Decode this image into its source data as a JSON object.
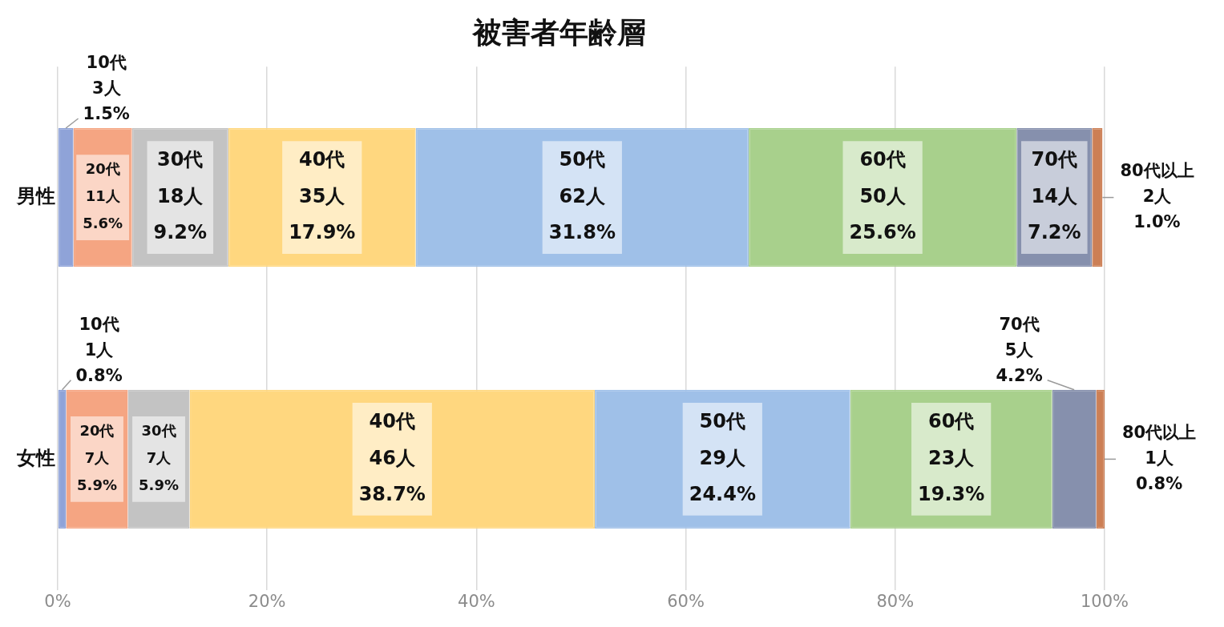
{
  "chart_data": {
    "type": "bar",
    "title": "被害者年齢層",
    "orientation": "horizontal",
    "stacked": true,
    "categories": [
      "男性",
      "女性"
    ],
    "xlim": [
      0,
      100
    ],
    "xticks": [
      {
        "value": 0,
        "label": "0%"
      },
      {
        "value": 20,
        "label": "20%"
      },
      {
        "value": 40,
        "label": "40%"
      },
      {
        "value": 60,
        "label": "60%"
      },
      {
        "value": 80,
        "label": "80%"
      },
      {
        "value": 100,
        "label": "100%"
      }
    ],
    "grid": "x",
    "series": [
      {
        "name": "10代",
        "color": "#8fa3d8",
        "values": [
          1.5,
          0.8
        ],
        "value_labels": [
          "3人\n1.5%",
          "1人\n0.8%"
        ]
      },
      {
        "name": "20代",
        "color": "#f5a582",
        "values": [
          5.6,
          5.9
        ],
        "value_labels": [
          "11人\n5.6%",
          "7人\n5.9%"
        ]
      },
      {
        "name": "30代",
        "color": "#c3c3c3",
        "values": [
          9.2,
          5.9
        ],
        "value_labels": [
          "18人\n9.2%",
          "7人\n5.9%"
        ]
      },
      {
        "name": "40代",
        "color": "#ffd77f",
        "values": [
          17.9,
          38.7
        ],
        "value_labels": [
          "35人\n17.9%",
          "46人\n38.7%"
        ]
      },
      {
        "name": "50代",
        "color": "#9fc0e8",
        "values": [
          31.8,
          24.4
        ],
        "value_labels": [
          "62人\n31.8%",
          "29人\n24.4%"
        ]
      },
      {
        "name": "60代",
        "color": "#a8d08c",
        "values": [
          25.6,
          19.3
        ],
        "value_labels": [
          "50人\n25.6%",
          "23人\n19.3%"
        ]
      },
      {
        "name": "70代",
        "color": "#8690ad",
        "values": [
          7.2,
          4.2
        ],
        "value_labels": [
          "14人\n7.2%",
          "5人\n4.2%"
        ]
      },
      {
        "name": "80代以上",
        "color": "#cc7f55",
        "values": [
          1.0,
          0.8
        ],
        "value_labels": [
          "2人\n1.0%",
          "1人\n0.8%"
        ]
      }
    ]
  }
}
